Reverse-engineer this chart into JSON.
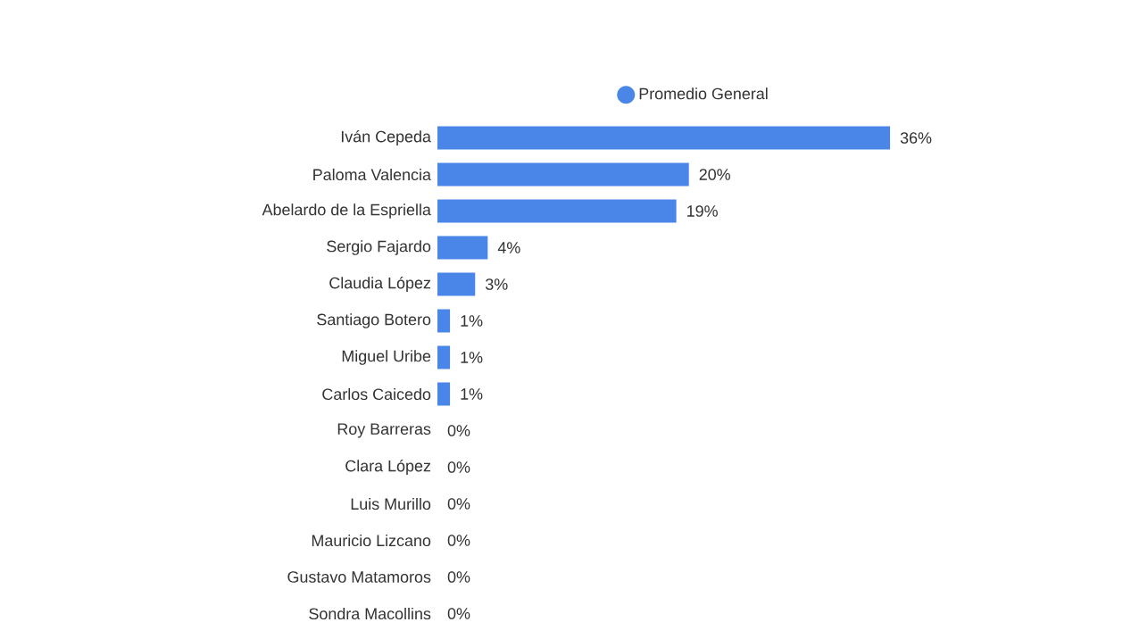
{
  "chart_data": {
    "type": "bar",
    "orientation": "horizontal",
    "legend": "top",
    "categories": [
      "Iván Cepeda",
      "Paloma Valencia",
      "Abelardo de la Espriella",
      "Sergio Fajardo",
      "Claudia López",
      "Santiago Botero",
      "Miguel Uribe",
      "Carlos Caicedo",
      "Roy Barreras",
      "Clara López",
      "Luis Murillo",
      "Mauricio Lizcano",
      "Gustavo Matamoros",
      "Sondra Macollins"
    ],
    "series": [
      {
        "name": "Promedio General",
        "color": "#4a86e8",
        "values": [
          36,
          20,
          19,
          4,
          3,
          1,
          1,
          1,
          0,
          0,
          0,
          0,
          0,
          0
        ],
        "value_labels": [
          "36%",
          "20%",
          "19%",
          "4%",
          "3%",
          "1%",
          "1%",
          "1%",
          "0%",
          "0%",
          "0%",
          "0%",
          "0%",
          "0%"
        ]
      }
    ]
  }
}
